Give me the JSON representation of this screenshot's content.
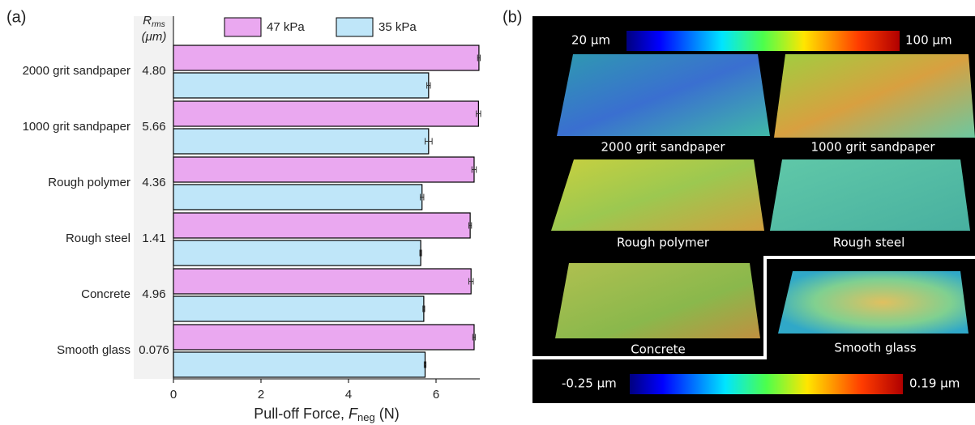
{
  "chart_data": {
    "type": "hbar",
    "panel_label": "(a)",
    "categories": [
      "2000 grit sandpaper",
      "1000 grit sandpaper",
      "Rough polymer",
      "Rough steel",
      "Concrete",
      "Smooth glass"
    ],
    "rms_header": {
      "symbol": "R",
      "sub": "rms",
      "unit": "(μm)"
    },
    "rms_labels": [
      "4.80",
      "5.66",
      "4.36",
      "1.41",
      "4.96",
      "0.076"
    ],
    "series": [
      {
        "name": "47 kPa",
        "color": "#eaa8f0",
        "values": [
          6.98,
          6.97,
          6.87,
          6.78,
          6.8,
          6.87
        ],
        "errors": [
          0.03,
          0.05,
          0.05,
          0.03,
          0.05,
          0.03
        ]
      },
      {
        "name": "35 kPa",
        "color": "#bfe6f9",
        "values": [
          5.83,
          5.83,
          5.68,
          5.65,
          5.72,
          5.75
        ],
        "errors": [
          0.04,
          0.08,
          0.04,
          0.02,
          0.02,
          0.02
        ]
      }
    ],
    "xlim": [
      0,
      7
    ],
    "xticks": [
      0,
      2,
      4,
      6
    ],
    "xlabel": {
      "text": "Pull-off Force, ",
      "var": "F",
      "sub": "neg",
      "unit": " (N)"
    }
  },
  "panel_b": {
    "panel_label": "(b)",
    "top_colorbar": {
      "min_label": "20 μm",
      "max_label": "100 μm"
    },
    "surfaces": [
      "2000 grit sandpaper",
      "1000 grit sandpaper",
      "Rough polymer",
      "Rough steel",
      "Concrete",
      "Smooth glass"
    ],
    "bottom_colorbar": {
      "min_label": "-0.25 μm",
      "max_label": "0.19 μm"
    }
  }
}
